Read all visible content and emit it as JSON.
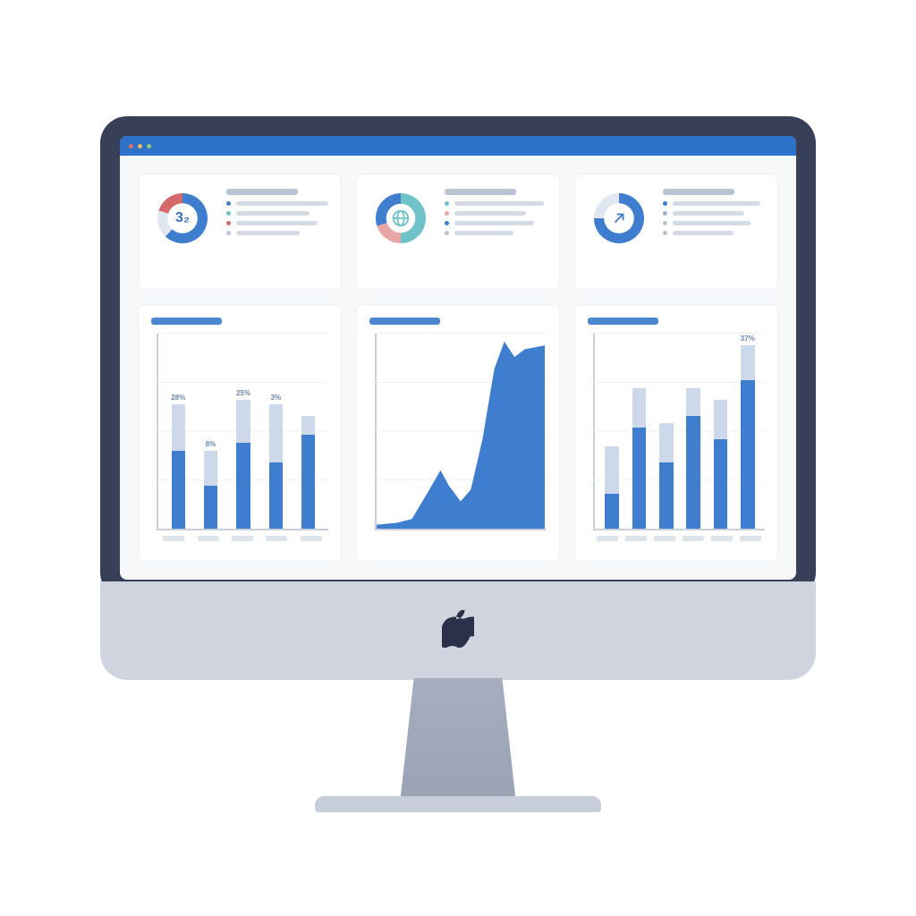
{
  "device": {
    "type": "imac",
    "bezel_color": "#384059",
    "chin_color": "#cfd4de",
    "stand_color": "#a5adbf",
    "logo_color": "#2b3148"
  },
  "window": {
    "titlebar_color": "#2d72c9",
    "traffic_lights": [
      "#e06a65",
      "#e8b860",
      "#8ec77a"
    ],
    "background": "#f6f8fa"
  },
  "stats": [
    {
      "id": "stat-1",
      "type": "donut",
      "center_value": "3₂",
      "center_fontsize": 18,
      "segments": [
        {
          "color": "#3f7ecf",
          "fraction": 0.62
        },
        {
          "color": "#e1e7f0",
          "fraction": 0.18
        },
        {
          "color": "#d46a6a",
          "fraction": 0.2
        }
      ],
      "inner_ratio": 0.6,
      "legend_dots": [
        "#3f7ecf",
        "#6fc2c7",
        "#d46a6a",
        "#b9c4d3"
      ],
      "legend_widths": [
        0.9,
        0.72,
        0.8,
        0.62
      ]
    },
    {
      "id": "stat-2",
      "type": "donut",
      "center_icon": "globe",
      "center_icon_color": "#6fc2c7",
      "segments": [
        {
          "color": "#6fc2c7",
          "fraction": 0.5
        },
        {
          "color": "#e9a6a6",
          "fraction": 0.2
        },
        {
          "color": "#3f7ecf",
          "fraction": 0.3
        }
      ],
      "inner_ratio": 0.58,
      "legend_dots": [
        "#6fc2c7",
        "#e9a6a6",
        "#3f7ecf",
        "#b9c4d3"
      ],
      "legend_widths": [
        0.88,
        0.7,
        0.78,
        0.58
      ]
    },
    {
      "id": "stat-3",
      "type": "donut",
      "center_icon": "arrow-up-right",
      "center_icon_color": "#3f7ecf",
      "segments": [
        {
          "color": "#3f7ecf",
          "fraction": 0.75
        },
        {
          "color": "#e1e7f0",
          "fraction": 0.25
        }
      ],
      "inner_ratio": 0.6,
      "legend_dots": [
        "#3f7ecf",
        "#9ab3d2",
        "#b9c4d3",
        "#b9c4d3"
      ],
      "legend_widths": [
        0.86,
        0.7,
        0.76,
        0.6
      ]
    }
  ],
  "charts": [
    {
      "id": "bar-left",
      "type": "stacked-bar",
      "title_color": "#4a87cf",
      "ylim": [
        0,
        100
      ],
      "gridlines": [
        25,
        50,
        75,
        100
      ],
      "bar_width": 0.55,
      "colors": {
        "bottom": "#3f7ecf",
        "top": "#cdd9ea"
      },
      "bars": [
        {
          "label": "28%",
          "bottom": 40,
          "top": 24
        },
        {
          "label": "8%",
          "bottom": 22,
          "top": 18
        },
        {
          "label": "25%",
          "bottom": 44,
          "top": 22
        },
        {
          "label": "3%",
          "bottom": 34,
          "top": 30
        },
        {
          "label": "",
          "bottom": 48,
          "top": 10
        }
      ],
      "label_color": "#6b86ab",
      "xaxis_placeholders": 5
    },
    {
      "id": "area-mid",
      "type": "area",
      "title_color": "#4a87cf",
      "fill_color": "#3f7ecf",
      "xlim": [
        0,
        10
      ],
      "ylim": [
        0,
        100
      ],
      "gridlines": [
        25,
        50,
        75,
        100
      ],
      "points": [
        [
          0,
          2
        ],
        [
          1.2,
          3
        ],
        [
          2.1,
          5
        ],
        [
          3.0,
          18
        ],
        [
          3.8,
          30
        ],
        [
          4.3,
          22
        ],
        [
          5.0,
          14
        ],
        [
          5.6,
          20
        ],
        [
          6.3,
          46
        ],
        [
          7.0,
          82
        ],
        [
          7.6,
          96
        ],
        [
          8.2,
          88
        ],
        [
          8.8,
          92
        ],
        [
          10,
          94
        ]
      ],
      "xaxis_placeholders": 0
    },
    {
      "id": "bar-right",
      "type": "stacked-bar",
      "title_color": "#4a87cf",
      "ylim": [
        0,
        100
      ],
      "gridlines": [
        25,
        50,
        75,
        100
      ],
      "bar_width": 0.55,
      "colors": {
        "bottom": "#3f7ecf",
        "top": "#cdd9ea"
      },
      "bars": [
        {
          "label": "",
          "bottom": 18,
          "top": 24
        },
        {
          "label": "",
          "bottom": 52,
          "top": 20
        },
        {
          "label": "",
          "bottom": 34,
          "top": 20
        },
        {
          "label": "",
          "bottom": 58,
          "top": 14
        },
        {
          "label": "",
          "bottom": 46,
          "top": 20
        },
        {
          "label": "37%",
          "bottom": 76,
          "top": 18
        }
      ],
      "label_color": "#6b86ab",
      "xaxis_placeholders": 6
    }
  ]
}
